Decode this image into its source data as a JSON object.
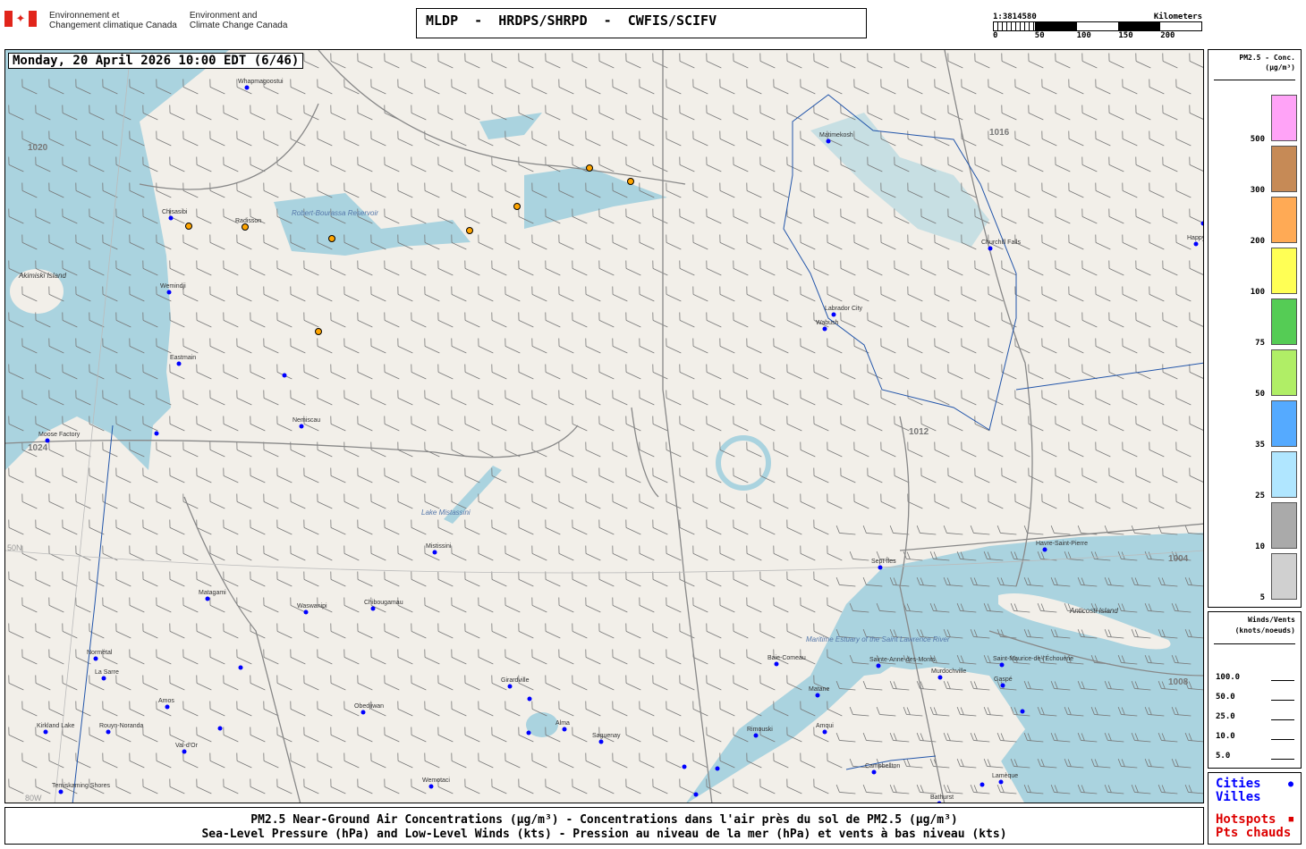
{
  "header": {
    "org_fr_1": "Environnement et",
    "org_fr_2": "Changement climatique Canada",
    "org_en_1": "Environment and",
    "org_en_2": "Climate Change Canada",
    "title": "MLDP  -  HRDPS/SHRPD  -  CWFIS/SCIFV"
  },
  "scale": {
    "ratio": "1:3814580",
    "unit": "Kilometers",
    "ticks": [
      "0",
      "50",
      "100",
      "150",
      "200"
    ]
  },
  "map": {
    "datetime": "Monday, 20 April 2026 10:00 EDT (6/46)",
    "colors": {
      "land": "#f2efe9",
      "water": "#aad3df",
      "isobar": "#777777",
      "city": "#0000ff",
      "hotspot": "#ffa500",
      "border": "#2255aa"
    },
    "isobar_labels": [
      "1020",
      "1024",
      "1016",
      "1012",
      "1004",
      "1008"
    ],
    "grid_labels": [
      "50N",
      "80W"
    ],
    "water_labels": [
      "Robert-Bourassa Reservoir",
      "Lake Mistassini",
      "Maritime Estuary of the Saint Lawrence River",
      "Anticosti Island",
      "Akimiski Island"
    ],
    "cities": [
      {
        "name": "Whapmagoostui"
      },
      {
        "name": "Chisasibi"
      },
      {
        "name": "Radisson"
      },
      {
        "name": "Wemindji"
      },
      {
        "name": "Eastmain"
      },
      {
        "name": "Moose Factory"
      },
      {
        "name": "Nemiscau"
      },
      {
        "name": "Mistissini"
      },
      {
        "name": "Matagami"
      },
      {
        "name": "Waswanipi"
      },
      {
        "name": "Chibougamau"
      },
      {
        "name": "Normétal"
      },
      {
        "name": "La Sarre"
      },
      {
        "name": "Amos"
      },
      {
        "name": "Kirkland Lake"
      },
      {
        "name": "Rouyn-Noranda"
      },
      {
        "name": "Val-d'Or"
      },
      {
        "name": "Temiskaming Shores"
      },
      {
        "name": "Obedjiwan"
      },
      {
        "name": "Wemotaci"
      },
      {
        "name": "Girardville"
      },
      {
        "name": "Alma"
      },
      {
        "name": "Saguenay"
      },
      {
        "name": "Rimouski"
      },
      {
        "name": "Amqui"
      },
      {
        "name": "Matane"
      },
      {
        "name": "Baie-Comeau"
      },
      {
        "name": "Sainte-Anne-des-Monts"
      },
      {
        "name": "Murdochville"
      },
      {
        "name": "Gaspé"
      },
      {
        "name": "Saint-Maurice-de-l'Échouerie"
      },
      {
        "name": "Sept-Îles"
      },
      {
        "name": "Havre-Saint-Pierre"
      },
      {
        "name": "Campbellton"
      },
      {
        "name": "Bathurst"
      },
      {
        "name": "Lamèque"
      },
      {
        "name": "Labrador City"
      },
      {
        "name": "Churchill Falls"
      },
      {
        "name": "Happy Valley-Goose Bay"
      },
      {
        "name": "Matimekosh"
      },
      {
        "name": "Wabush"
      }
    ]
  },
  "pm_legend": {
    "title": "PM2.5 - Conc.",
    "unit": "(µg/m³)",
    "bins": [
      {
        "label": "500",
        "color": "#ffa3f7"
      },
      {
        "label": "300",
        "color": "#c68a56"
      },
      {
        "label": "200",
        "color": "#ffaa55"
      },
      {
        "label": "100",
        "color": "#ffff55"
      },
      {
        "label": "75",
        "color": "#55cc55"
      },
      {
        "label": "50",
        "color": "#b0ee66"
      },
      {
        "label": "35",
        "color": "#55aaff"
      },
      {
        "label": "25",
        "color": "#b0e6ff"
      },
      {
        "label": "10",
        "color": "#aaaaaa"
      },
      {
        "label": "5",
        "color": "#d0d0d0"
      }
    ]
  },
  "wind_legend": {
    "title": "Winds/Vents",
    "unit": "(knots/noeuds)",
    "speeds": [
      "100.0",
      "50.0",
      "25.0",
      "10.0",
      "5.0"
    ]
  },
  "point_legend": {
    "cities_en": "Cities",
    "cities_fr": "Villes",
    "hotspots_en": "Hotspots",
    "hotspots_fr": "Pts chauds",
    "cities_color": "#0000ff",
    "hotspots_color": "#dd0000"
  },
  "footer": {
    "line1": "PM2.5 Near-Ground Air Concentrations (µg/m³) - Concentrations dans l'air près du sol de PM2.5 (µg/m³)",
    "line2": "Sea-Level Pressure (hPa) and Low-Level Winds (kts) - Pression au niveau de la mer (hPa) et vents à bas niveau (kts)"
  }
}
